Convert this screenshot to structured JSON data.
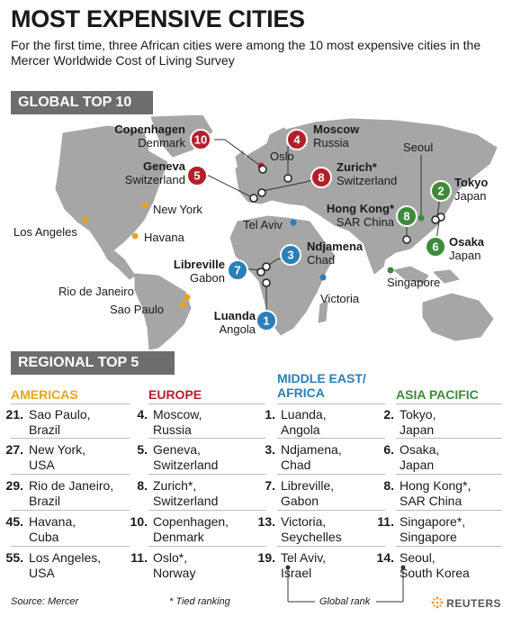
{
  "title": "MOST EXPENSIVE CITIES",
  "subtitle": "For the first time, three African cities were among the 10 most expensive cities in the Mercer Worldwide Cost of Living Survey",
  "global_banner": "GLOBAL TOP 10",
  "regional_banner": "REGIONAL TOP 5",
  "colors": {
    "americas": "#e8a31c",
    "europe": "#b41f2c",
    "mea": "#2a7fb8",
    "asia": "#3f8a3a",
    "map_land": "#a6a6a6",
    "banner": "#6d6d6d"
  },
  "map": {
    "global": [
      {
        "rank": "10",
        "city": "Copenhagen",
        "country": "Denmark",
        "region": "europe"
      },
      {
        "rank": "5",
        "city": "Geneva",
        "country": "Switzerland",
        "region": "europe"
      },
      {
        "rank": "4",
        "city": "Moscow",
        "country": "Russia",
        "region": "europe"
      },
      {
        "rank": "8",
        "city": "Zurich*",
        "country": "Switzerland",
        "region": "europe"
      },
      {
        "rank": "8",
        "city": "Hong Kong*",
        "country": "SAR China",
        "region": "asia"
      },
      {
        "rank": "2",
        "city": "Tokyo",
        "country": "Japan",
        "region": "asia"
      },
      {
        "rank": "6",
        "city": "Osaka",
        "country": "Japan",
        "region": "asia"
      },
      {
        "rank": "3",
        "city": "Ndjamena",
        "country": "Chad",
        "region": "mea"
      },
      {
        "rank": "7",
        "city": "Libreville",
        "country": "Gabon",
        "region": "mea"
      },
      {
        "rank": "1",
        "city": "Luanda",
        "country": "Angola",
        "region": "mea"
      }
    ],
    "other": [
      "Oslo",
      "Seoul",
      "New York",
      "Tel Aviv",
      "Los Angeles",
      "Havana",
      "Rio de Janeiro",
      "Sao Paulo",
      "Victoria",
      "Singapore"
    ]
  },
  "columns": [
    {
      "key": "americas",
      "title_lines": [
        "AMERICAS"
      ],
      "entries": [
        {
          "rank": "21.",
          "lines": [
            "Sao Paulo,",
            "Brazil"
          ]
        },
        {
          "rank": "27.",
          "lines": [
            "New York,",
            "USA"
          ]
        },
        {
          "rank": "29.",
          "lines": [
            "Rio de Janeiro,",
            "Brazil"
          ]
        },
        {
          "rank": "45.",
          "lines": [
            "Havana,",
            "Cuba"
          ]
        },
        {
          "rank": "55.",
          "lines": [
            "Los Angeles,",
            "USA"
          ]
        }
      ]
    },
    {
      "key": "europe",
      "title_lines": [
        "EUROPE"
      ],
      "entries": [
        {
          "rank": "4.",
          "lines": [
            "Moscow,",
            "Russia"
          ]
        },
        {
          "rank": "5.",
          "lines": [
            "Geneva,",
            "Switzerland"
          ]
        },
        {
          "rank": "8.",
          "lines": [
            "Zurich*,",
            "Switzerland"
          ]
        },
        {
          "rank": "10.",
          "lines": [
            "Copenhagen,",
            "Denmark"
          ]
        },
        {
          "rank": "11.",
          "lines": [
            "Oslo*,",
            "Norway"
          ]
        }
      ]
    },
    {
      "key": "mea",
      "title_lines": [
        "MIDDLE EAST/",
        "AFRICA"
      ],
      "entries": [
        {
          "rank": "1.",
          "lines": [
            "Luanda,",
            "Angola"
          ]
        },
        {
          "rank": "3.",
          "lines": [
            "Ndjamena,",
            "Chad"
          ]
        },
        {
          "rank": "7.",
          "lines": [
            "Libreville,",
            "Gabon"
          ]
        },
        {
          "rank": "13.",
          "lines": [
            "Victoria,",
            "Seychelles"
          ]
        },
        {
          "rank": "19.",
          "lines": [
            "Tel Aviv,",
            "Israel"
          ]
        }
      ]
    },
    {
      "key": "asia",
      "title_lines": [
        "ASIA PACIFIC"
      ],
      "entries": [
        {
          "rank": "2.",
          "lines": [
            "Tokyo,",
            "Japan"
          ]
        },
        {
          "rank": "6.",
          "lines": [
            "Osaka,",
            "Japan"
          ]
        },
        {
          "rank": "8.",
          "lines": [
            "Hong Kong*,",
            "SAR China"
          ]
        },
        {
          "rank": "11.",
          "lines": [
            "Singapore*,",
            "Singapore"
          ]
        },
        {
          "rank": "14.",
          "lines": [
            "Seoul,",
            "South Korea"
          ]
        }
      ]
    }
  ],
  "footer": {
    "source": "Source: Mercer",
    "tied": "* Tied ranking",
    "global_rank": "Global rank",
    "brand": "REUTERS"
  }
}
